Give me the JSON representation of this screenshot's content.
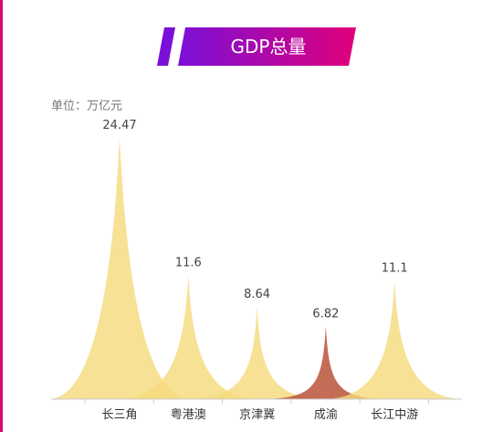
{
  "header": {
    "title": "GDP总量"
  },
  "unit": "单位：万亿元",
  "colors": {
    "bar_default": "#f5d97a",
    "bar_highlight": "#b8543a",
    "banner_start": "#7b10d8",
    "banner_end": "#e0007a"
  },
  "chart_data": {
    "type": "area",
    "title": "GDP总量",
    "ylabel": "单位：万亿元",
    "categories": [
      "长三角",
      "粤港澳",
      "京津冀",
      "成渝",
      "长江中游"
    ],
    "values": [
      24.47,
      11.6,
      8.64,
      6.82,
      11.1
    ],
    "value_labels": [
      "24.47",
      "11.6",
      "8.64",
      "6.82",
      "11.1"
    ],
    "highlight_index": 3,
    "ylim": [
      0,
      26
    ],
    "grid": false,
    "legend": "none"
  }
}
